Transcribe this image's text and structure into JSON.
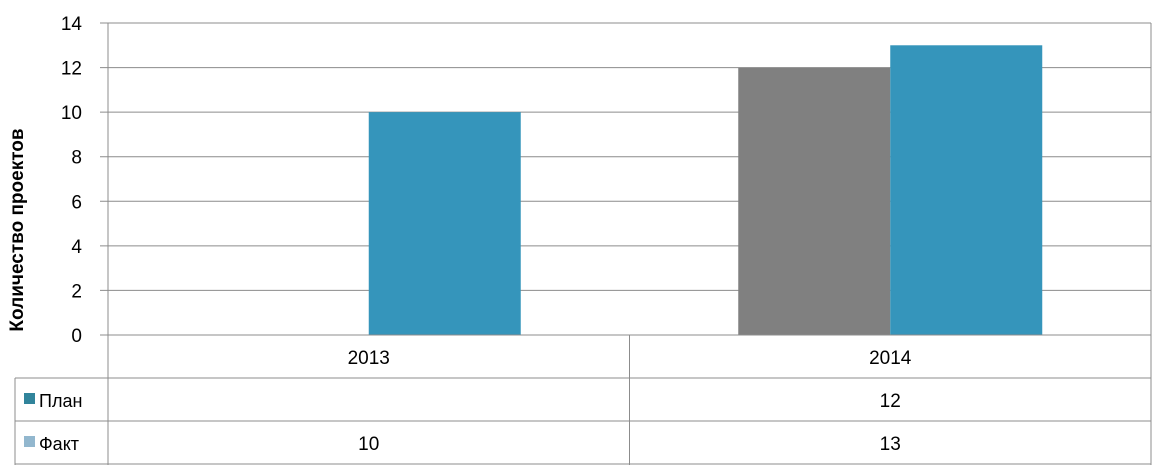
{
  "chart_data": {
    "type": "bar",
    "ylabel": "Количество проектов",
    "categories": [
      "2013",
      "2014"
    ],
    "series": [
      {
        "name": "План",
        "values": [
          null,
          12
        ],
        "color": "#808080",
        "legend_color": "#31849b"
      },
      {
        "name": "Факт",
        "values": [
          10,
          13
        ],
        "color": "#3595bb",
        "legend_color": "#92b7ce"
      }
    ],
    "ylim": [
      0,
      14
    ],
    "yticks": [
      0,
      2,
      4,
      6,
      8,
      10,
      12,
      14
    ],
    "grid": true,
    "legend": "data-table",
    "table": {
      "rows": [
        {
          "label": "План",
          "cells": [
            "",
            "12"
          ]
        },
        {
          "label": "Факт",
          "cells": [
            "10",
            "13"
          ]
        }
      ]
    }
  }
}
